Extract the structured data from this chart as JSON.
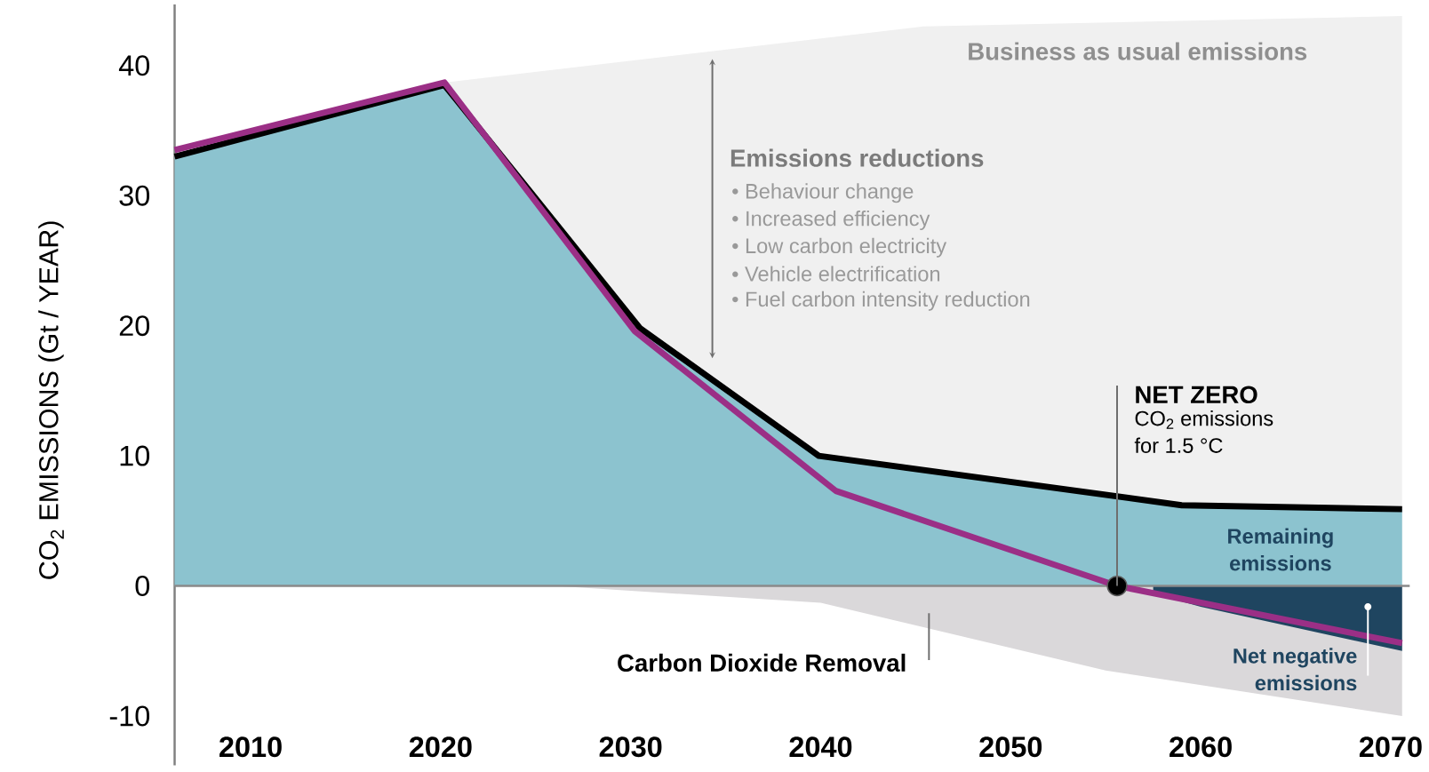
{
  "chart_data": {
    "type": "area",
    "ylabel": "CO$_{2}$ EMISSIONS (Gt / YEAR)",
    "xlim": [
      2006,
      2071
    ],
    "ylim": [
      -13.8,
      44.7
    ],
    "xticks": [
      2010,
      2020,
      2030,
      2040,
      2050,
      2060,
      2070
    ],
    "yticks": [
      -10,
      0,
      10,
      20,
      30,
      40
    ],
    "series": [
      {
        "color": "#f0f0f0",
        "x": [
          2020.2,
          2045.4,
          2070.6
        ],
        "values": [
          38.7,
          43,
          43.8
        ]
      },
      {
        "color": "#dad8da",
        "x": [
          2026,
          2040,
          2055,
          2070.6
        ],
        "values": [
          0,
          -1.3,
          -6.5,
          -10
        ]
      },
      {
        "color": "#8cc3cf",
        "line_style": "solid",
        "x": [
          2006,
          2020.2,
          2030.5,
          2039.9,
          2059,
          2070.6
        ],
        "values": [
          33,
          38.5,
          19.8,
          10,
          6.2,
          5.9
        ]
      },
      {
        "color": "#1f4560",
        "x": [
          2057.5,
          2060,
          2070.6
        ],
        "values": [
          -0.6,
          -1.6,
          -5
        ]
      },
      {
        "type": "line",
        "color": "#9b2f86",
        "x": [
          2006,
          2020.2,
          2030.2,
          2040.8,
          2055.6,
          2070.6
        ],
        "values": [
          33.5,
          38.7,
          19.6,
          7.3,
          0,
          -4.4
        ]
      },
      {
        "type": "scatter",
        "marker": "circle",
        "color": "#000000",
        "x": [
          2055.6
        ],
        "values": [
          0
        ]
      }
    ],
    "ref_lines": [
      {
        "axis": "y",
        "value": 0,
        "color": "#8a8a8a"
      }
    ],
    "annotations": [
      "Business as usual emissions",
      "Emissions reductions",
      "•   Behaviour change",
      "•   Increased efficiency",
      "•   Low carbon electricity",
      "•   Vehicle electrification",
      "•   Fuel carbon intensity reduction",
      {
        "text": "NET ZERO",
        "x": 2055.6,
        "y": 0
      },
      "CO$_{2}$ emissions for 1.5 °C",
      "Remaining emissions",
      "Net negative emissions",
      "Carbon Dioxide Removal"
    ]
  }
}
